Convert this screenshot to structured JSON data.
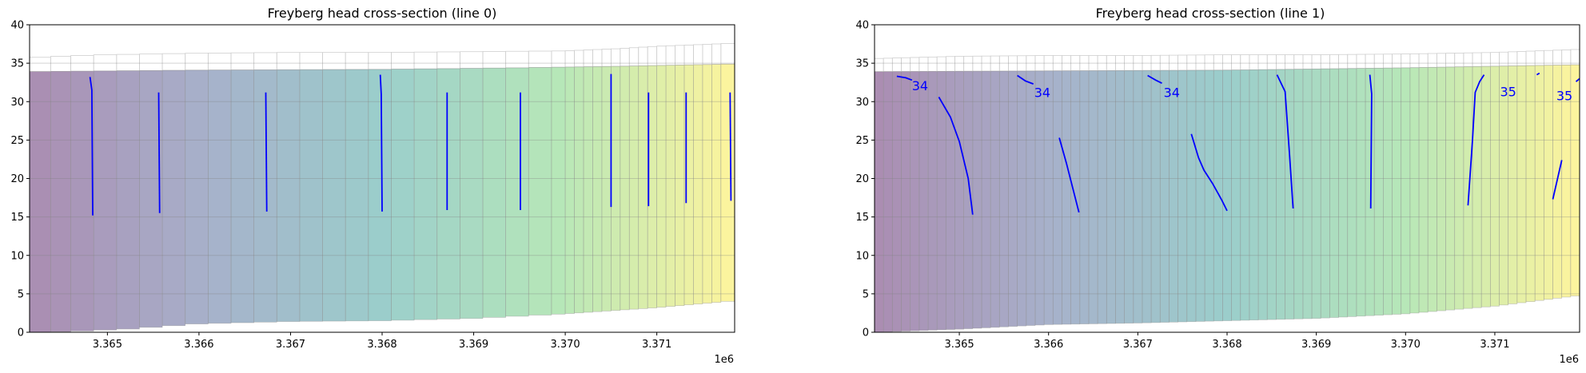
{
  "chart_data": [
    {
      "type": "area",
      "title": "Freyberg head cross-section (line 0)",
      "xlabel": "",
      "ylabel": "",
      "x_offset_label": "1e6",
      "xlim": [
        3364150,
        3371850
      ],
      "ylim": [
        0,
        40
      ],
      "x_ticks": [
        3365000,
        3366000,
        3367000,
        3368000,
        3369000,
        3370000,
        3371000
      ],
      "x_tick_labels": [
        "3.365",
        "3.366",
        "3.367",
        "3.368",
        "3.369",
        "3.370",
        "3.371"
      ],
      "y_ticks": [
        0,
        5,
        10,
        15,
        20,
        25,
        30,
        35,
        40
      ],
      "y_tick_labels": [
        "0",
        "5",
        "10",
        "15",
        "20",
        "25",
        "30",
        "35",
        "40"
      ],
      "grid": "horizontal",
      "colormap": [
        "#440154",
        "#3b528b",
        "#21918c",
        "#5ec962",
        "#fde725"
      ],
      "cell_alpha": 0.45,
      "model_top": [
        {
          "x": 3364150,
          "y": 35.7
        },
        {
          "x": 3364500,
          "y": 35.9
        },
        {
          "x": 3365000,
          "y": 36.1
        },
        {
          "x": 3366000,
          "y": 36.3
        },
        {
          "x": 3367000,
          "y": 36.4
        },
        {
          "x": 3368000,
          "y": 36.4
        },
        {
          "x": 3369000,
          "y": 36.5
        },
        {
          "x": 3370000,
          "y": 36.6
        },
        {
          "x": 3370600,
          "y": 36.9
        },
        {
          "x": 3371000,
          "y": 37.2
        },
        {
          "x": 3371850,
          "y": 37.6
        }
      ],
      "head_surface": [
        {
          "x": 3364150,
          "y": 33.9
        },
        {
          "x": 3366000,
          "y": 34.1
        },
        {
          "x": 3368000,
          "y": 34.2
        },
        {
          "x": 3369500,
          "y": 34.4
        },
        {
          "x": 3370600,
          "y": 34.6
        },
        {
          "x": 3371850,
          "y": 34.9
        }
      ],
      "bottom": [
        {
          "x": 3364150,
          "y": 0.0
        },
        {
          "x": 3364600,
          "y": 0.1
        },
        {
          "x": 3365200,
          "y": 0.4
        },
        {
          "x": 3366000,
          "y": 1.1
        },
        {
          "x": 3367000,
          "y": 1.4
        },
        {
          "x": 3368000,
          "y": 1.5
        },
        {
          "x": 3369000,
          "y": 1.8
        },
        {
          "x": 3370000,
          "y": 2.4
        },
        {
          "x": 3371000,
          "y": 3.2
        },
        {
          "x": 3371850,
          "y": 4.1
        }
      ],
      "column_edges": [
        3364150,
        3364380,
        3364600,
        3364850,
        3365100,
        3365350,
        3365600,
        3365850,
        3366100,
        3366350,
        3366600,
        3366850,
        3367100,
        3367350,
        3367600,
        3367850,
        3368100,
        3368350,
        3368600,
        3368850,
        3369100,
        3369350,
        3369600,
        3369850,
        3370000,
        3370100,
        3370200,
        3370300,
        3370400,
        3370500,
        3370600,
        3370700,
        3370800,
        3370900,
        3371000,
        3371100,
        3371200,
        3371300,
        3371400,
        3371500,
        3371600,
        3371700,
        3371850
      ],
      "contours": [
        [
          [
            3364810,
            33.2
          ],
          [
            3364830,
            31.5
          ],
          [
            3364840,
            15.2
          ]
        ],
        [
          [
            3365560,
            31.2
          ],
          [
            3365570,
            15.5
          ]
        ],
        [
          [
            3366730,
            31.2
          ],
          [
            3366740,
            15.7
          ]
        ],
        [
          [
            3367980,
            33.5
          ],
          [
            3367990,
            31.0
          ],
          [
            3368000,
            15.7
          ]
        ],
        [
          [
            3368710,
            31.2
          ],
          [
            3368710,
            15.9
          ]
        ],
        [
          [
            3369510,
            31.2
          ],
          [
            3369510,
            15.9
          ]
        ],
        [
          [
            3370500,
            33.6
          ],
          [
            3370500,
            16.3
          ]
        ],
        [
          [
            3370910,
            31.2
          ],
          [
            3370910,
            16.4
          ]
        ],
        [
          [
            3371320,
            31.2
          ],
          [
            3371320,
            16.8
          ]
        ],
        [
          [
            3371800,
            31.2
          ],
          [
            3371810,
            17.1
          ]
        ]
      ],
      "contour_labels": []
    },
    {
      "type": "area",
      "title": "Freyberg head cross-section (line 1)",
      "xlabel": "",
      "ylabel": "",
      "x_offset_label": "1e6",
      "xlim": [
        3364050,
        3371950
      ],
      "ylim": [
        0,
        40
      ],
      "x_ticks": [
        3365000,
        3366000,
        3367000,
        3368000,
        3369000,
        3370000,
        3371000
      ],
      "x_tick_labels": [
        "3.365",
        "3.366",
        "3.367",
        "3.368",
        "3.369",
        "3.370",
        "3.371"
      ],
      "y_ticks": [
        0,
        5,
        10,
        15,
        20,
        25,
        30,
        35,
        40
      ],
      "y_tick_labels": [
        "0",
        "5",
        "10",
        "15",
        "20",
        "25",
        "30",
        "35",
        "40"
      ],
      "grid": "horizontal",
      "colormap": [
        "#440154",
        "#3b528b",
        "#21918c",
        "#5ec962",
        "#fde725"
      ],
      "cell_alpha": 0.45,
      "model_top": [
        {
          "x": 3364050,
          "y": 35.6
        },
        {
          "x": 3365000,
          "y": 35.9
        },
        {
          "x": 3366000,
          "y": 36.0
        },
        {
          "x": 3367000,
          "y": 36.0
        },
        {
          "x": 3368000,
          "y": 36.1
        },
        {
          "x": 3369000,
          "y": 36.1
        },
        {
          "x": 3370000,
          "y": 36.2
        },
        {
          "x": 3371000,
          "y": 36.4
        },
        {
          "x": 3371950,
          "y": 36.8
        }
      ],
      "head_surface": [
        {
          "x": 3364050,
          "y": 33.9
        },
        {
          "x": 3366000,
          "y": 34.0
        },
        {
          "x": 3368000,
          "y": 34.1
        },
        {
          "x": 3370000,
          "y": 34.4
        },
        {
          "x": 3371950,
          "y": 34.8
        }
      ],
      "bottom": [
        {
          "x": 3364050,
          "y": 0.0
        },
        {
          "x": 3365000,
          "y": 0.4
        },
        {
          "x": 3366000,
          "y": 1.0
        },
        {
          "x": 3367000,
          "y": 1.2
        },
        {
          "x": 3368000,
          "y": 1.5
        },
        {
          "x": 3369000,
          "y": 1.8
        },
        {
          "x": 3370000,
          "y": 2.4
        },
        {
          "x": 3371000,
          "y": 3.4
        },
        {
          "x": 3371950,
          "y": 4.8
        }
      ],
      "column_width": 100,
      "contours": [
        [
          [
            3364300,
            33.3
          ],
          [
            3364400,
            33.1
          ],
          [
            3364470,
            32.8
          ]
        ],
        [
          [
            3364770,
            30.6
          ],
          [
            3364900,
            28.0
          ],
          [
            3365000,
            24.8
          ],
          [
            3365100,
            20.0
          ],
          [
            3365150,
            15.3
          ]
        ],
        [
          [
            3365650,
            33.4
          ],
          [
            3365740,
            32.7
          ],
          [
            3365830,
            32.3
          ]
        ],
        [
          [
            3366120,
            25.3
          ],
          [
            3366200,
            22.0
          ],
          [
            3366340,
            15.6
          ]
        ],
        [
          [
            3367110,
            33.4
          ],
          [
            3367200,
            32.8
          ],
          [
            3367270,
            32.4
          ]
        ],
        [
          [
            3367600,
            25.8
          ],
          [
            3367680,
            22.7
          ],
          [
            3367740,
            21.1
          ],
          [
            3367840,
            19.3
          ],
          [
            3367940,
            17.2
          ],
          [
            3368000,
            15.8
          ]
        ],
        [
          [
            3368560,
            33.5
          ],
          [
            3368650,
            31.3
          ],
          [
            3368700,
            23.0
          ],
          [
            3368740,
            16.1
          ]
        ],
        [
          [
            3369600,
            33.5
          ],
          [
            3369620,
            31.0
          ],
          [
            3369610,
            16.1
          ]
        ],
        [
          [
            3370700,
            16.5
          ],
          [
            3370750,
            25.0
          ],
          [
            3370780,
            31.2
          ],
          [
            3370830,
            32.6
          ],
          [
            3370880,
            33.5
          ]
        ],
        [
          [
            3371470,
            33.5
          ],
          [
            3371500,
            33.7
          ]
        ],
        [
          [
            3371650,
            17.3
          ],
          [
            3371750,
            22.4
          ]
        ],
        [
          [
            3371910,
            32.6
          ],
          [
            3371950,
            33.0
          ]
        ]
      ],
      "contour_labels": [
        {
          "text": "34",
          "x": 3364560,
          "y": 32.0
        },
        {
          "text": "34",
          "x": 3365930,
          "y": 31.1
        },
        {
          "text": "34",
          "x": 3367380,
          "y": 31.1
        },
        {
          "text": "35",
          "x": 3371150,
          "y": 31.2
        },
        {
          "text": "35",
          "x": 3371780,
          "y": 30.7
        }
      ]
    }
  ]
}
